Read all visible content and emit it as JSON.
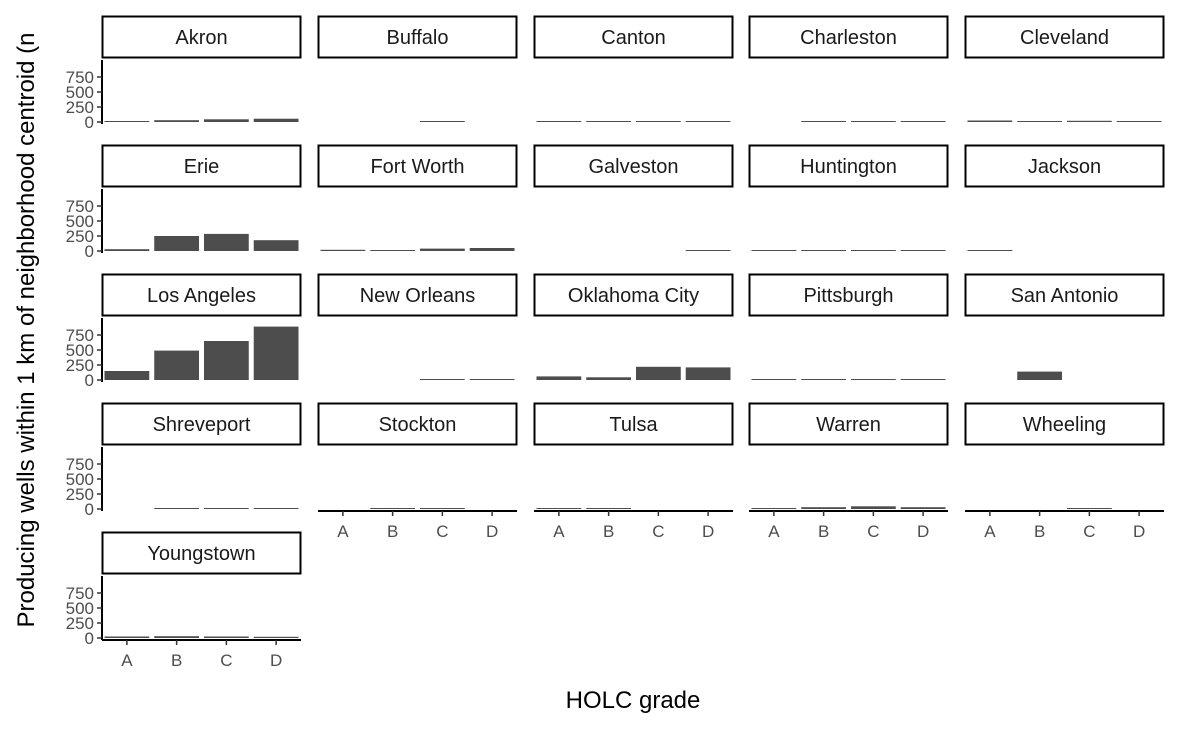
{
  "chart_data": {
    "type": "bar",
    "layout": "facet_wrap",
    "xlabel": "HOLC grade",
    "ylabel": "Producing wells within 1 km of neighborhood centroid  (n",
    "categories": [
      "A",
      "B",
      "C",
      "D"
    ],
    "ylim": [
      0,
      1000
    ],
    "yticks": [
      0,
      250,
      500,
      750
    ],
    "grid": false,
    "legend": "none",
    "bar_color": "#4d4d4d",
    "facets": [
      {
        "name": "Akron",
        "values": [
          10,
          30,
          45,
          55
        ]
      },
      {
        "name": "Buffalo",
        "values": [
          0,
          0,
          3,
          0
        ]
      },
      {
        "name": "Canton",
        "values": [
          2,
          12,
          15,
          12
        ]
      },
      {
        "name": "Charleston",
        "values": [
          0,
          5,
          4,
          3
        ]
      },
      {
        "name": "Cleveland",
        "values": [
          25,
          15,
          20,
          10
        ]
      },
      {
        "name": "Erie",
        "values": [
          30,
          250,
          285,
          180
        ]
      },
      {
        "name": "Fort Worth",
        "values": [
          20,
          8,
          40,
          50
        ]
      },
      {
        "name": "Galveston",
        "values": [
          0,
          0,
          0,
          3
        ]
      },
      {
        "name": "Huntington",
        "values": [
          10,
          5,
          10,
          5
        ]
      },
      {
        "name": "Jackson",
        "values": [
          3,
          0,
          0,
          0
        ]
      },
      {
        "name": "Los Angeles",
        "values": [
          150,
          490,
          650,
          890
        ]
      },
      {
        "name": "New Orleans",
        "values": [
          0,
          0,
          2,
          2
        ]
      },
      {
        "name": "Oklahoma City",
        "values": [
          60,
          45,
          220,
          210
        ]
      },
      {
        "name": "Pittsburgh",
        "values": [
          2,
          4,
          4,
          4
        ]
      },
      {
        "name": "San Antonio",
        "values": [
          0,
          140,
          0,
          0
        ]
      },
      {
        "name": "Shreveport",
        "values": [
          0,
          3,
          3,
          12
        ]
      },
      {
        "name": "Stockton",
        "values": [
          0,
          5,
          4,
          0
        ]
      },
      {
        "name": "Tulsa",
        "values": [
          5,
          5,
          0,
          0
        ]
      },
      {
        "name": "Warren",
        "values": [
          5,
          30,
          45,
          30
        ]
      },
      {
        "name": "Wheeling",
        "values": [
          0,
          0,
          3,
          0
        ]
      },
      {
        "name": "Youngstown",
        "values": [
          25,
          30,
          25,
          20
        ]
      }
    ]
  }
}
